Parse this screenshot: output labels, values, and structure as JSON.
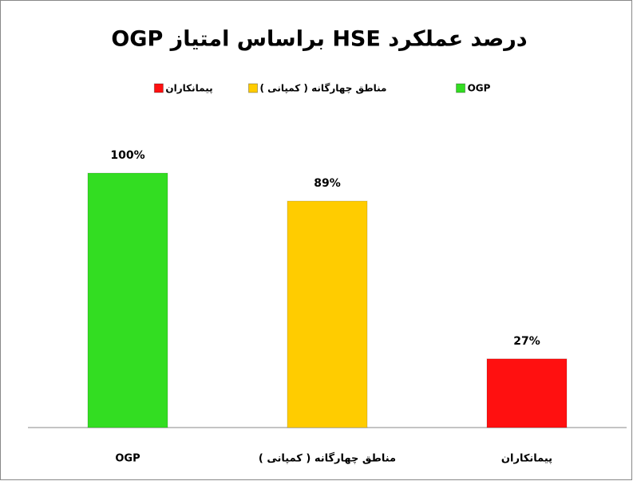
{
  "chart_data": {
    "type": "bar",
    "title": "درصد عملکرد HSE براساس امتیاز OGP",
    "categories": [
      "OGP",
      "مناطق چهارگانه ( کمپانی )",
      "پیمانکاران"
    ],
    "values": [
      100,
      89,
      27
    ],
    "value_labels": [
      "100%",
      "89%",
      "27%"
    ],
    "colors": [
      "#33dd22",
      "#ffcc00",
      "#ff1010"
    ],
    "legend": "top"
  }
}
